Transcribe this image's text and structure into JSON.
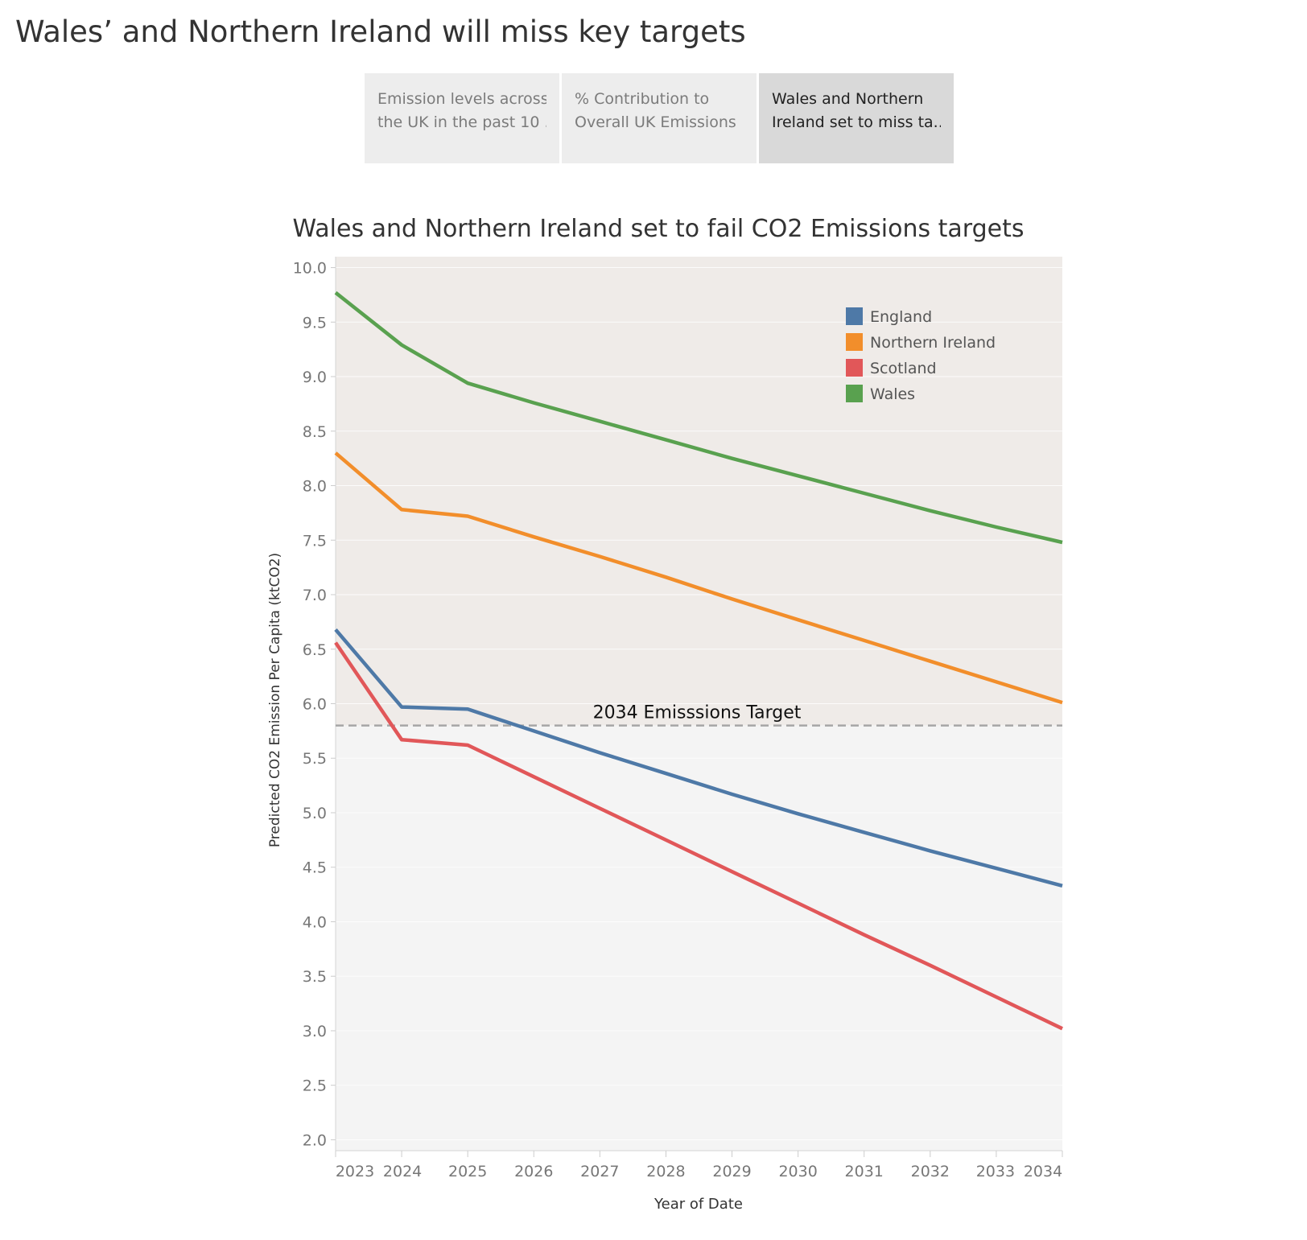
{
  "dashboard": {
    "title": "Wales’ and Northern Ireland will miss key targets"
  },
  "tabs": [
    {
      "line1": "Emission levels across",
      "line2": "the UK in the past 10 ..",
      "active": false
    },
    {
      "line1": "% Contribution to",
      "line2": "Overall UK Emissions",
      "active": false
    },
    {
      "line1": "Wales and Northern",
      "line2": "Ireland set to miss ta..",
      "active": true
    }
  ],
  "chart_data": {
    "type": "line",
    "title": "Wales and Northern Ireland set to fail CO2 Emissions targets",
    "xlabel": "Year of Date",
    "ylabel": "Predicted CO2 Emission Per Capita (ktCO2)",
    "x": [
      2023,
      2024,
      2025,
      2026,
      2027,
      2028,
      2029,
      2030,
      2031,
      2032,
      2033,
      2034
    ],
    "xlim": [
      2023,
      2034
    ],
    "ylim": [
      1.9,
      10.1
    ],
    "yticks": [
      "2.0",
      "2.5",
      "3.0",
      "3.5",
      "4.0",
      "4.5",
      "5.0",
      "5.5",
      "6.0",
      "6.5",
      "7.0",
      "7.5",
      "8.0",
      "8.5",
      "9.0",
      "9.5",
      "10.0"
    ],
    "grid": true,
    "legend_position": "top-right",
    "series": [
      {
        "name": "England",
        "color": "#4e79a7",
        "values": [
          6.68,
          5.97,
          5.95,
          5.75,
          5.55,
          5.36,
          5.17,
          4.99,
          4.82,
          4.65,
          4.49,
          4.33
        ]
      },
      {
        "name": "Northern Ireland",
        "color": "#f28e2b",
        "values": [
          8.3,
          7.78,
          7.72,
          7.53,
          7.35,
          7.16,
          6.96,
          6.77,
          6.58,
          6.39,
          6.2,
          6.01
        ]
      },
      {
        "name": "Scotland",
        "color": "#e15759",
        "values": [
          6.56,
          5.67,
          5.62,
          5.33,
          5.04,
          4.75,
          4.46,
          4.17,
          3.88,
          3.6,
          3.31,
          3.02
        ]
      },
      {
        "name": "Wales",
        "color": "#59a14f",
        "values": [
          9.77,
          9.29,
          8.94,
          8.76,
          8.59,
          8.42,
          8.25,
          8.09,
          7.93,
          7.77,
          7.62,
          7.48
        ]
      }
    ],
    "reference_line": {
      "label": "2034 Emisssions Target",
      "value": 5.8
    },
    "band_colors": {
      "above_target": "#efebe8",
      "below_target": "#f4f4f4"
    }
  }
}
